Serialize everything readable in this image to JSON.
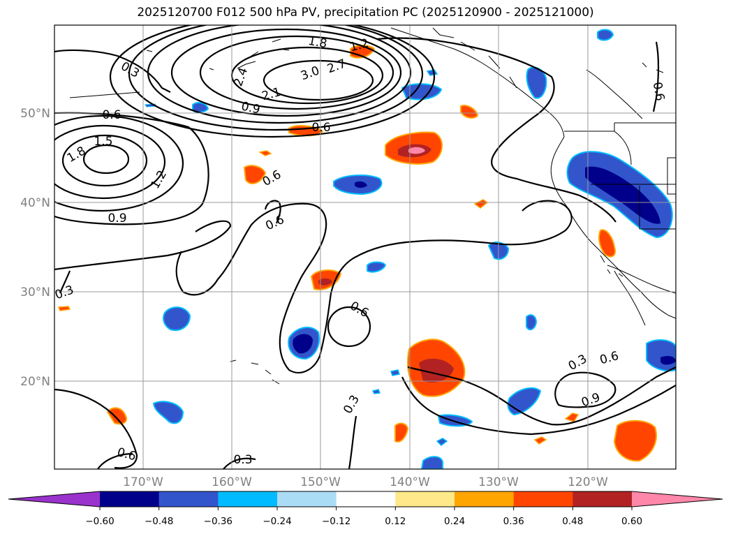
{
  "title": "2025120700 F012 500 hPa PV, precipitation PC (2025120900 - 2025121000)",
  "lat_labels": [
    "50°N",
    "40°N",
    "30°N",
    "20°N"
  ],
  "lon_labels": [
    "170°W",
    "160°W",
    "150°W",
    "140°W",
    "130°W",
    "120°W"
  ],
  "contour_labels": [
    "0.3",
    "0.6",
    "1.8",
    "1.5",
    "1.2",
    "0.9",
    "2.4",
    "3.0",
    "2.7",
    "2.1",
    "0.9",
    "0.6",
    "1.8",
    "1.2",
    "0.6",
    "0.6",
    "0.6",
    "0.3",
    "0.6",
    "0.3",
    "0.3",
    "0.3",
    "0.6",
    "0.9",
    "0.6"
  ],
  "colorbar": {
    "ticks": [
      "−0.60",
      "−0.48",
      "−0.36",
      "−0.24",
      "−0.12",
      "0.12",
      "0.24",
      "0.36",
      "0.48",
      "0.60"
    ],
    "colors": [
      "#9933cc",
      "#00008b",
      "#3355cc",
      "#00bbff",
      "#aaddf5",
      "#ffffff",
      "#ffe88a",
      "#ffa500",
      "#ff4500",
      "#b22222",
      "#ff88aa"
    ]
  }
}
